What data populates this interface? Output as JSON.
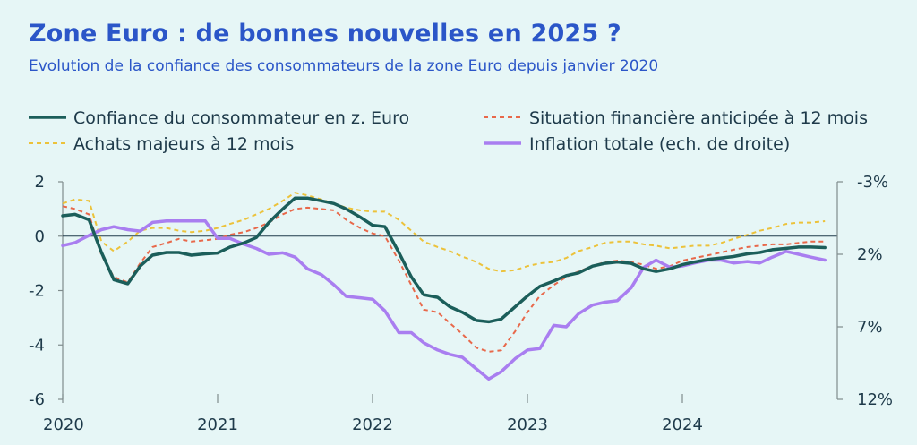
{
  "header": {
    "title": "Zone Euro : de bonnes nouvelles en 2025 ?",
    "subtitle": "Evolution de la confiance des consommateurs de la zone Euro depuis janvier 2020"
  },
  "chart_data": {
    "type": "line",
    "title": "Zone Euro : de bonnes nouvelles en 2025 ?",
    "subtitle": "Evolution de la confiance des consommateurs de la zone Euro depuis janvier 2020",
    "x_range": [
      2020.0,
      2025.0
    ],
    "x_ticks": [
      {
        "value": 2020,
        "label": "2020"
      },
      {
        "value": 2021,
        "label": "2021"
      },
      {
        "value": 2022,
        "label": "2022"
      },
      {
        "value": 2023,
        "label": "2023"
      },
      {
        "value": 2024,
        "label": "2024"
      }
    ],
    "y_left": {
      "ylim": [
        -6,
        2
      ],
      "ticks": [
        {
          "value": 2,
          "label": "2"
        },
        {
          "value": 0,
          "label": "0"
        },
        {
          "value": -2,
          "label": "-2"
        },
        {
          "value": -4,
          "label": "-4"
        },
        {
          "value": -6,
          "label": "-6"
        }
      ]
    },
    "y_right": {
      "ylim": [
        12,
        -3
      ],
      "inverted": true,
      "ticks": [
        {
          "value": -3,
          "label": "-3%"
        },
        {
          "value": 2,
          "label": "2%"
        },
        {
          "value": 7,
          "label": "7%"
        },
        {
          "value": 12,
          "label": "12%"
        }
      ]
    },
    "legend_position": "top",
    "series": [
      {
        "name": "Confiance du consommateur en z. Euro",
        "color": "#1b5e5a",
        "style": "solid",
        "width": 3.5,
        "axis": "left",
        "x": [
          2020.0,
          2020.08,
          2020.17,
          2020.25,
          2020.33,
          2020.42,
          2020.5,
          2020.58,
          2020.67,
          2020.75,
          2020.83,
          2020.92,
          2021.0,
          2021.08,
          2021.17,
          2021.25,
          2021.33,
          2021.42,
          2021.5,
          2021.58,
          2021.67,
          2021.75,
          2021.83,
          2021.92,
          2022.0,
          2022.08,
          2022.17,
          2022.25,
          2022.33,
          2022.42,
          2022.5,
          2022.58,
          2022.67,
          2022.75,
          2022.83,
          2022.92,
          2023.0,
          2023.08,
          2023.17,
          2023.25,
          2023.33,
          2023.42,
          2023.5,
          2023.58,
          2023.67,
          2023.75,
          2023.83,
          2023.92,
          2024.0,
          2024.08,
          2024.17,
          2024.25,
          2024.33,
          2024.42,
          2024.5,
          2024.58,
          2024.67,
          2024.75,
          2024.83,
          2024.92
        ],
        "y": [
          0.75,
          0.8,
          0.6,
          -0.6,
          -1.6,
          -1.75,
          -1.1,
          -0.7,
          -0.6,
          -0.6,
          -0.7,
          -0.65,
          -0.62,
          -0.4,
          -0.25,
          -0.05,
          0.5,
          1.0,
          1.4,
          1.4,
          1.3,
          1.2,
          1.0,
          0.7,
          0.4,
          0.35,
          -0.6,
          -1.5,
          -2.15,
          -2.25,
          -2.6,
          -2.8,
          -3.1,
          -3.15,
          -3.05,
          -2.6,
          -2.2,
          -1.85,
          -1.65,
          -1.45,
          -1.35,
          -1.1,
          -1.0,
          -0.95,
          -1.0,
          -1.2,
          -1.3,
          -1.2,
          -1.05,
          -0.95,
          -0.85,
          -0.8,
          -0.75,
          -0.65,
          -0.6,
          -0.5,
          -0.45,
          -0.4,
          -0.4,
          -0.42
        ]
      },
      {
        "name": "Situation financière anticipée à 12 mois",
        "color": "#e8684a",
        "style": "dashed",
        "width": 2,
        "axis": "left",
        "x": [
          2020.0,
          2020.08,
          2020.17,
          2020.25,
          2020.33,
          2020.42,
          2020.5,
          2020.58,
          2020.67,
          2020.75,
          2020.83,
          2020.92,
          2021.0,
          2021.08,
          2021.17,
          2021.25,
          2021.33,
          2021.42,
          2021.5,
          2021.58,
          2021.67,
          2021.75,
          2021.83,
          2021.92,
          2022.0,
          2022.08,
          2022.17,
          2022.25,
          2022.33,
          2022.42,
          2022.5,
          2022.58,
          2022.67,
          2022.75,
          2022.83,
          2022.92,
          2023.0,
          2023.08,
          2023.17,
          2023.25,
          2023.33,
          2023.42,
          2023.5,
          2023.58,
          2023.67,
          2023.75,
          2023.83,
          2023.92,
          2024.0,
          2024.08,
          2024.17,
          2024.25,
          2024.33,
          2024.42,
          2024.5,
          2024.58,
          2024.67,
          2024.75,
          2024.83,
          2024.92
        ],
        "y": [
          1.1,
          1.0,
          0.8,
          -0.7,
          -1.5,
          -1.7,
          -1.0,
          -0.4,
          -0.25,
          -0.1,
          -0.2,
          -0.15,
          -0.1,
          0.05,
          0.15,
          0.3,
          0.5,
          0.8,
          1.0,
          1.05,
          1.0,
          0.95,
          0.6,
          0.3,
          0.1,
          0.0,
          -0.9,
          -1.8,
          -2.7,
          -2.8,
          -3.2,
          -3.6,
          -4.1,
          -4.25,
          -4.2,
          -3.5,
          -2.8,
          -2.2,
          -1.8,
          -1.5,
          -1.3,
          -1.1,
          -0.95,
          -0.9,
          -0.95,
          -1.05,
          -1.2,
          -1.1,
          -0.9,
          -0.8,
          -0.7,
          -0.6,
          -0.5,
          -0.4,
          -0.35,
          -0.3,
          -0.3,
          -0.25,
          -0.2,
          -0.2
        ]
      },
      {
        "name": "Achats majeurs à 12 mois",
        "color": "#ecc23a",
        "style": "dashed",
        "width": 2,
        "axis": "left",
        "x": [
          2020.0,
          2020.08,
          2020.17,
          2020.25,
          2020.33,
          2020.42,
          2020.5,
          2020.58,
          2020.67,
          2020.75,
          2020.83,
          2020.92,
          2021.0,
          2021.08,
          2021.17,
          2021.25,
          2021.33,
          2021.42,
          2021.5,
          2021.58,
          2021.67,
          2021.75,
          2021.83,
          2021.92,
          2022.0,
          2022.08,
          2022.17,
          2022.25,
          2022.33,
          2022.42,
          2022.5,
          2022.58,
          2022.67,
          2022.75,
          2022.83,
          2022.92,
          2023.0,
          2023.08,
          2023.17,
          2023.25,
          2023.33,
          2023.42,
          2023.5,
          2023.58,
          2023.67,
          2023.75,
          2023.83,
          2023.92,
          2024.0,
          2024.08,
          2024.17,
          2024.25,
          2024.33,
          2024.42,
          2024.5,
          2024.58,
          2024.67,
          2024.75,
          2024.83,
          2024.92
        ],
        "y": [
          1.2,
          1.35,
          1.3,
          -0.2,
          -0.55,
          -0.2,
          0.2,
          0.3,
          0.3,
          0.2,
          0.15,
          0.2,
          0.3,
          0.45,
          0.6,
          0.8,
          1.0,
          1.3,
          1.6,
          1.5,
          1.35,
          1.2,
          1.05,
          0.95,
          0.9,
          0.9,
          0.6,
          0.2,
          -0.2,
          -0.4,
          -0.55,
          -0.75,
          -0.95,
          -1.2,
          -1.3,
          -1.25,
          -1.1,
          -1.0,
          -0.95,
          -0.8,
          -0.55,
          -0.4,
          -0.25,
          -0.2,
          -0.2,
          -0.3,
          -0.35,
          -0.45,
          -0.4,
          -0.35,
          -0.35,
          -0.25,
          -0.1,
          0.05,
          0.2,
          0.3,
          0.45,
          0.5,
          0.5,
          0.55
        ]
      },
      {
        "name": "Inflation totale (ech. de droite)",
        "color": "#a97ef0",
        "style": "solid",
        "width": 3.5,
        "axis": "right",
        "x": [
          2020.0,
          2020.08,
          2020.17,
          2020.25,
          2020.33,
          2020.42,
          2020.5,
          2020.58,
          2020.67,
          2020.75,
          2020.83,
          2020.92,
          2021.0,
          2021.08,
          2021.17,
          2021.25,
          2021.33,
          2021.42,
          2021.5,
          2021.58,
          2021.67,
          2021.75,
          2021.83,
          2021.92,
          2022.0,
          2022.08,
          2022.17,
          2022.25,
          2022.33,
          2022.42,
          2022.5,
          2022.58,
          2022.67,
          2022.75,
          2022.83,
          2022.92,
          2023.0,
          2023.08,
          2023.17,
          2023.25,
          2023.33,
          2023.42,
          2023.5,
          2023.58,
          2023.67,
          2023.75,
          2023.83,
          2023.92,
          2024.0,
          2024.08,
          2024.17,
          2024.25,
          2024.33,
          2024.42,
          2024.5,
          2024.58,
          2024.67,
          2024.75,
          2024.83,
          2024.92
        ],
        "y": [
          1.4,
          1.2,
          0.7,
          0.3,
          0.1,
          0.3,
          0.4,
          -0.2,
          -0.3,
          -0.3,
          -0.3,
          -0.3,
          0.9,
          0.9,
          1.3,
          1.6,
          2.0,
          1.9,
          2.2,
          3.0,
          3.4,
          4.1,
          4.9,
          5.0,
          5.1,
          5.9,
          7.4,
          7.4,
          8.1,
          8.6,
          8.9,
          9.1,
          9.9,
          10.6,
          10.1,
          9.2,
          8.6,
          8.5,
          6.9,
          7.0,
          6.1,
          5.5,
          5.3,
          5.2,
          4.3,
          2.9,
          2.4,
          2.9,
          2.8,
          2.6,
          2.4,
          2.4,
          2.6,
          2.5,
          2.6,
          2.2,
          1.8,
          2.0,
          2.2,
          2.4
        ]
      }
    ]
  }
}
